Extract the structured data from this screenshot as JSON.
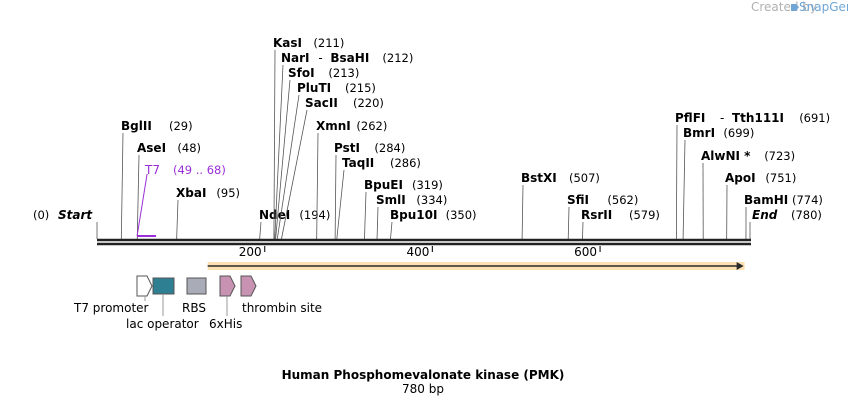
{
  "watermark": {
    "created_by": "Created by",
    "brand": "SnapGene"
  },
  "title": "Human Phosphomevalonate kinase (PMK)",
  "length_label": "780 bp",
  "ruler": {
    "ticks": [
      "200",
      "400",
      "600"
    ]
  },
  "ends": {
    "start_name": "Start",
    "start_pos": "(0)",
    "end_name": "End",
    "end_pos": "(780)"
  },
  "sites": [
    {
      "name": "BglII",
      "pos": "(29)",
      "bp": 29
    },
    {
      "name": "AseI",
      "pos": "(48)",
      "bp": 48
    },
    {
      "name": "XbaI",
      "pos": "(95)",
      "bp": 95
    },
    {
      "name": "NdeI",
      "pos": "(194)",
      "bp": 194
    },
    {
      "name": "KasI",
      "pos": "(211)",
      "bp": 211
    },
    {
      "name": "NarI",
      "sep": "-",
      "name2": "BsaHI",
      "pos": "(212)",
      "bp": 212
    },
    {
      "name": "SfoI",
      "pos": "(213)",
      "bp": 213
    },
    {
      "name": "PluTI",
      "pos": "(215)",
      "bp": 215
    },
    {
      "name": "SacII",
      "pos": "(220)",
      "bp": 220
    },
    {
      "name": "XmnI",
      "pos": "(262)",
      "bp": 262
    },
    {
      "name": "PstI",
      "pos": "(284)",
      "bp": 284
    },
    {
      "name": "TaqII",
      "pos": "(286)",
      "bp": 286
    },
    {
      "name": "BpuEI",
      "pos": "(319)",
      "bp": 319
    },
    {
      "name": "SmlI",
      "pos": "(334)",
      "bp": 334
    },
    {
      "name": "Bpu10I",
      "pos": "(350)",
      "bp": 350
    },
    {
      "name": "BstXI",
      "pos": "(507)",
      "bp": 507
    },
    {
      "name": "SfiI",
      "pos": "(562)",
      "bp": 562
    },
    {
      "name": "RsrII",
      "pos": "(579)",
      "bp": 579
    },
    {
      "name": "PflFI",
      "sep": "-",
      "name2": "Tth111I",
      "pos": "(691)",
      "bp": 691
    },
    {
      "name": "BmrI",
      "pos": "(699)",
      "bp": 699
    },
    {
      "name": "AlwNI *",
      "pos": "(723)",
      "bp": 723
    },
    {
      "name": "ApoI",
      "pos": "(751)",
      "bp": 751
    },
    {
      "name": "BamHI",
      "pos": "(774)",
      "bp": 774
    }
  ],
  "primer": {
    "name": "T7",
    "range": "(49 .. 68)",
    "start_bp": 49,
    "end_bp": 68,
    "color": "#9b30d9"
  },
  "orf": {
    "start_bp": 132,
    "end_bp": 770,
    "color": "#f5a623"
  },
  "features": [
    {
      "name": "T7 promoter",
      "type": "promoter"
    },
    {
      "name": "lac operator",
      "type": "operator",
      "color": "#2f7f93"
    },
    {
      "name": "RBS",
      "type": "rbs",
      "color": "#a9acb6"
    },
    {
      "name": "6xHis",
      "type": "tag",
      "color": "#c893b2"
    },
    {
      "name": "thrombin site",
      "type": "site",
      "color": "#c893b2"
    }
  ],
  "colors": {
    "backbone": "#222222",
    "site_line": "#444444",
    "watermark": "#b0b0b0",
    "brand": "#6fa6d6"
  }
}
